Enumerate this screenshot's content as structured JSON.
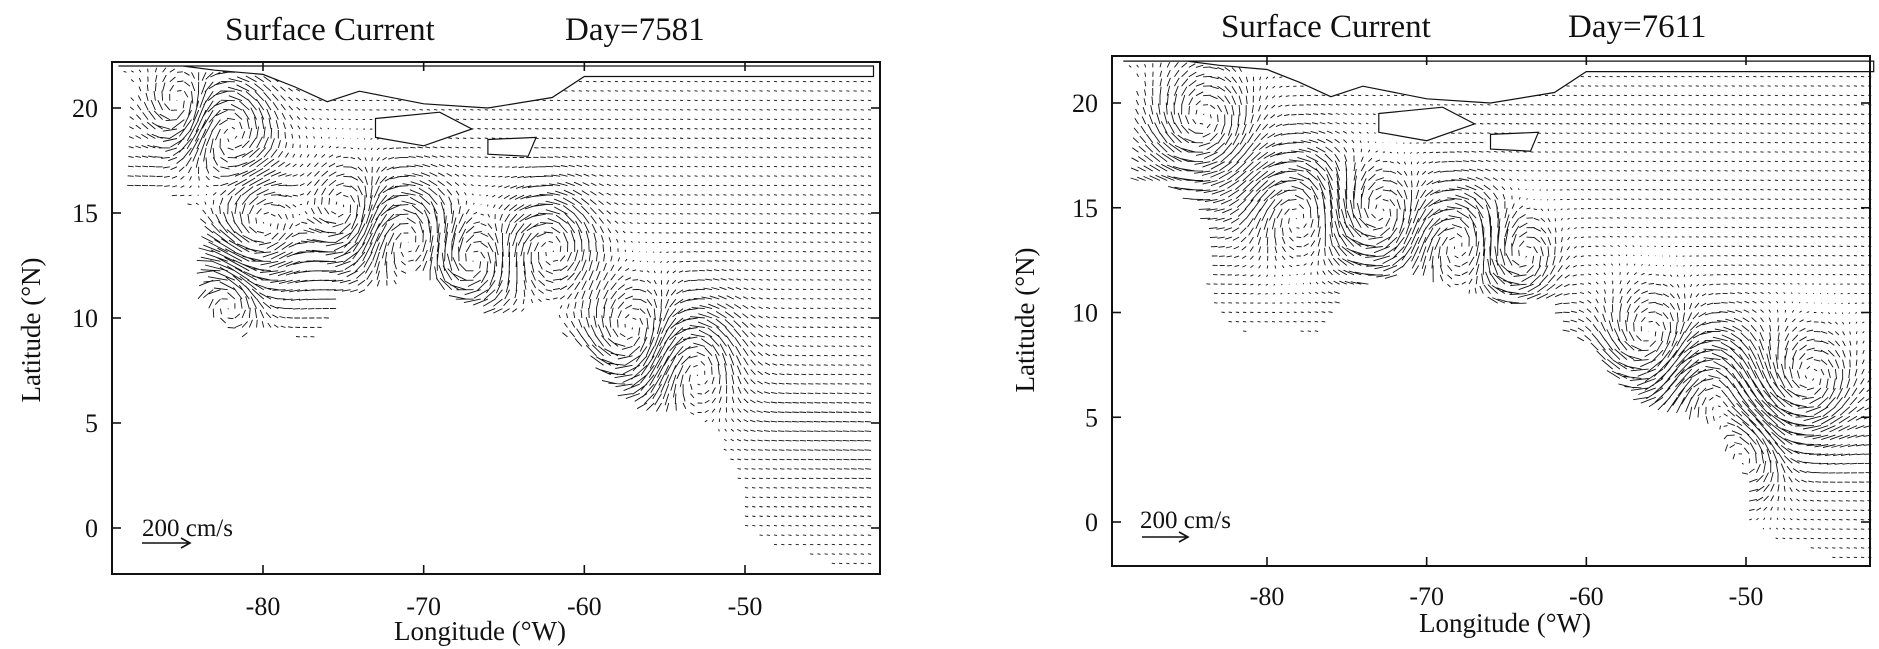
{
  "figure": {
    "colors": {
      "ink": "#111111",
      "land": "#ffffff",
      "background": "#ffffff"
    },
    "scale_arrow_label": "200 cm/s"
  },
  "chart_data": [
    {
      "type": "vector_field",
      "title": "Surface Current",
      "subtitle": "Day=7581",
      "xlabel": "Longitude (°W)",
      "ylabel": "Latitude (°N)",
      "xlim": [
        -89,
        -42
      ],
      "ylim": [
        -2,
        22
      ],
      "xticks": [
        -80,
        -70,
        -60,
        -50
      ],
      "xtick_labels": [
        "-80",
        "-70",
        "-60",
        "-50"
      ],
      "yticks": [
        0,
        5,
        10,
        15,
        20
      ],
      "ytick_labels": [
        "0",
        "5",
        "10",
        "15",
        "20"
      ],
      "scale_arrow": {
        "speed_cm_s": 200,
        "label": "200 cm/s"
      },
      "eddies": [
        {
          "lon": -85,
          "lat": 20,
          "r": 1.3,
          "sense": "cw"
        },
        {
          "lon": -82,
          "lat": 19,
          "r": 1.8,
          "sense": "ccw"
        },
        {
          "lon": -80,
          "lat": 14,
          "r": 1.8,
          "sense": "cw"
        },
        {
          "lon": -82,
          "lat": 11,
          "r": 1.4,
          "sense": "ccw"
        },
        {
          "lon": -75,
          "lat": 15,
          "r": 1.6,
          "sense": "cw"
        },
        {
          "lon": -71,
          "lat": 14,
          "r": 1.7,
          "sense": "ccw"
        },
        {
          "lon": -67,
          "lat": 12.5,
          "r": 1.4,
          "sense": "cw"
        },
        {
          "lon": -62,
          "lat": 13.5,
          "r": 1.7,
          "sense": "ccw"
        },
        {
          "lon": -57,
          "lat": 9,
          "r": 1.8,
          "sense": "cw"
        },
        {
          "lon": -53,
          "lat": 8,
          "r": 1.8,
          "sense": "ccw"
        }
      ]
    },
    {
      "type": "vector_field",
      "title": "Surface Current",
      "subtitle": "Day=7611",
      "xlabel": "Longitude (°W)",
      "ylabel": "Latitude (°N)",
      "xlim": [
        -89,
        -42
      ],
      "ylim": [
        -2,
        22
      ],
      "xticks": [
        -80,
        -70,
        -60,
        -50
      ],
      "xtick_labels": [
        "-80",
        "-70",
        "-60",
        "-50"
      ],
      "yticks": [
        0,
        5,
        10,
        15,
        20
      ],
      "ytick_labels": [
        "0",
        "5",
        "10",
        "15",
        "20"
      ],
      "scale_arrow": {
        "speed_cm_s": 200,
        "label": "200 cm/s"
      },
      "eddies": [
        {
          "lon": -84,
          "lat": 19,
          "r": 2.0,
          "sense": "cw"
        },
        {
          "lon": -78,
          "lat": 15,
          "r": 1.8,
          "sense": "ccw"
        },
        {
          "lon": -73,
          "lat": 14.5,
          "r": 1.6,
          "sense": "cw"
        },
        {
          "lon": -68,
          "lat": 13.5,
          "r": 1.6,
          "sense": "ccw"
        },
        {
          "lon": -64,
          "lat": 12.5,
          "r": 1.4,
          "sense": "cw"
        },
        {
          "lon": -56,
          "lat": 8.5,
          "r": 1.8,
          "sense": "cw"
        },
        {
          "lon": -52,
          "lat": 6.5,
          "r": 1.8,
          "sense": "ccw"
        },
        {
          "lon": -46,
          "lat": 6.5,
          "r": 1.8,
          "sense": "cw"
        },
        {
          "lon": -50,
          "lat": 3,
          "r": 1.5,
          "sense": "ccw"
        }
      ]
    }
  ]
}
